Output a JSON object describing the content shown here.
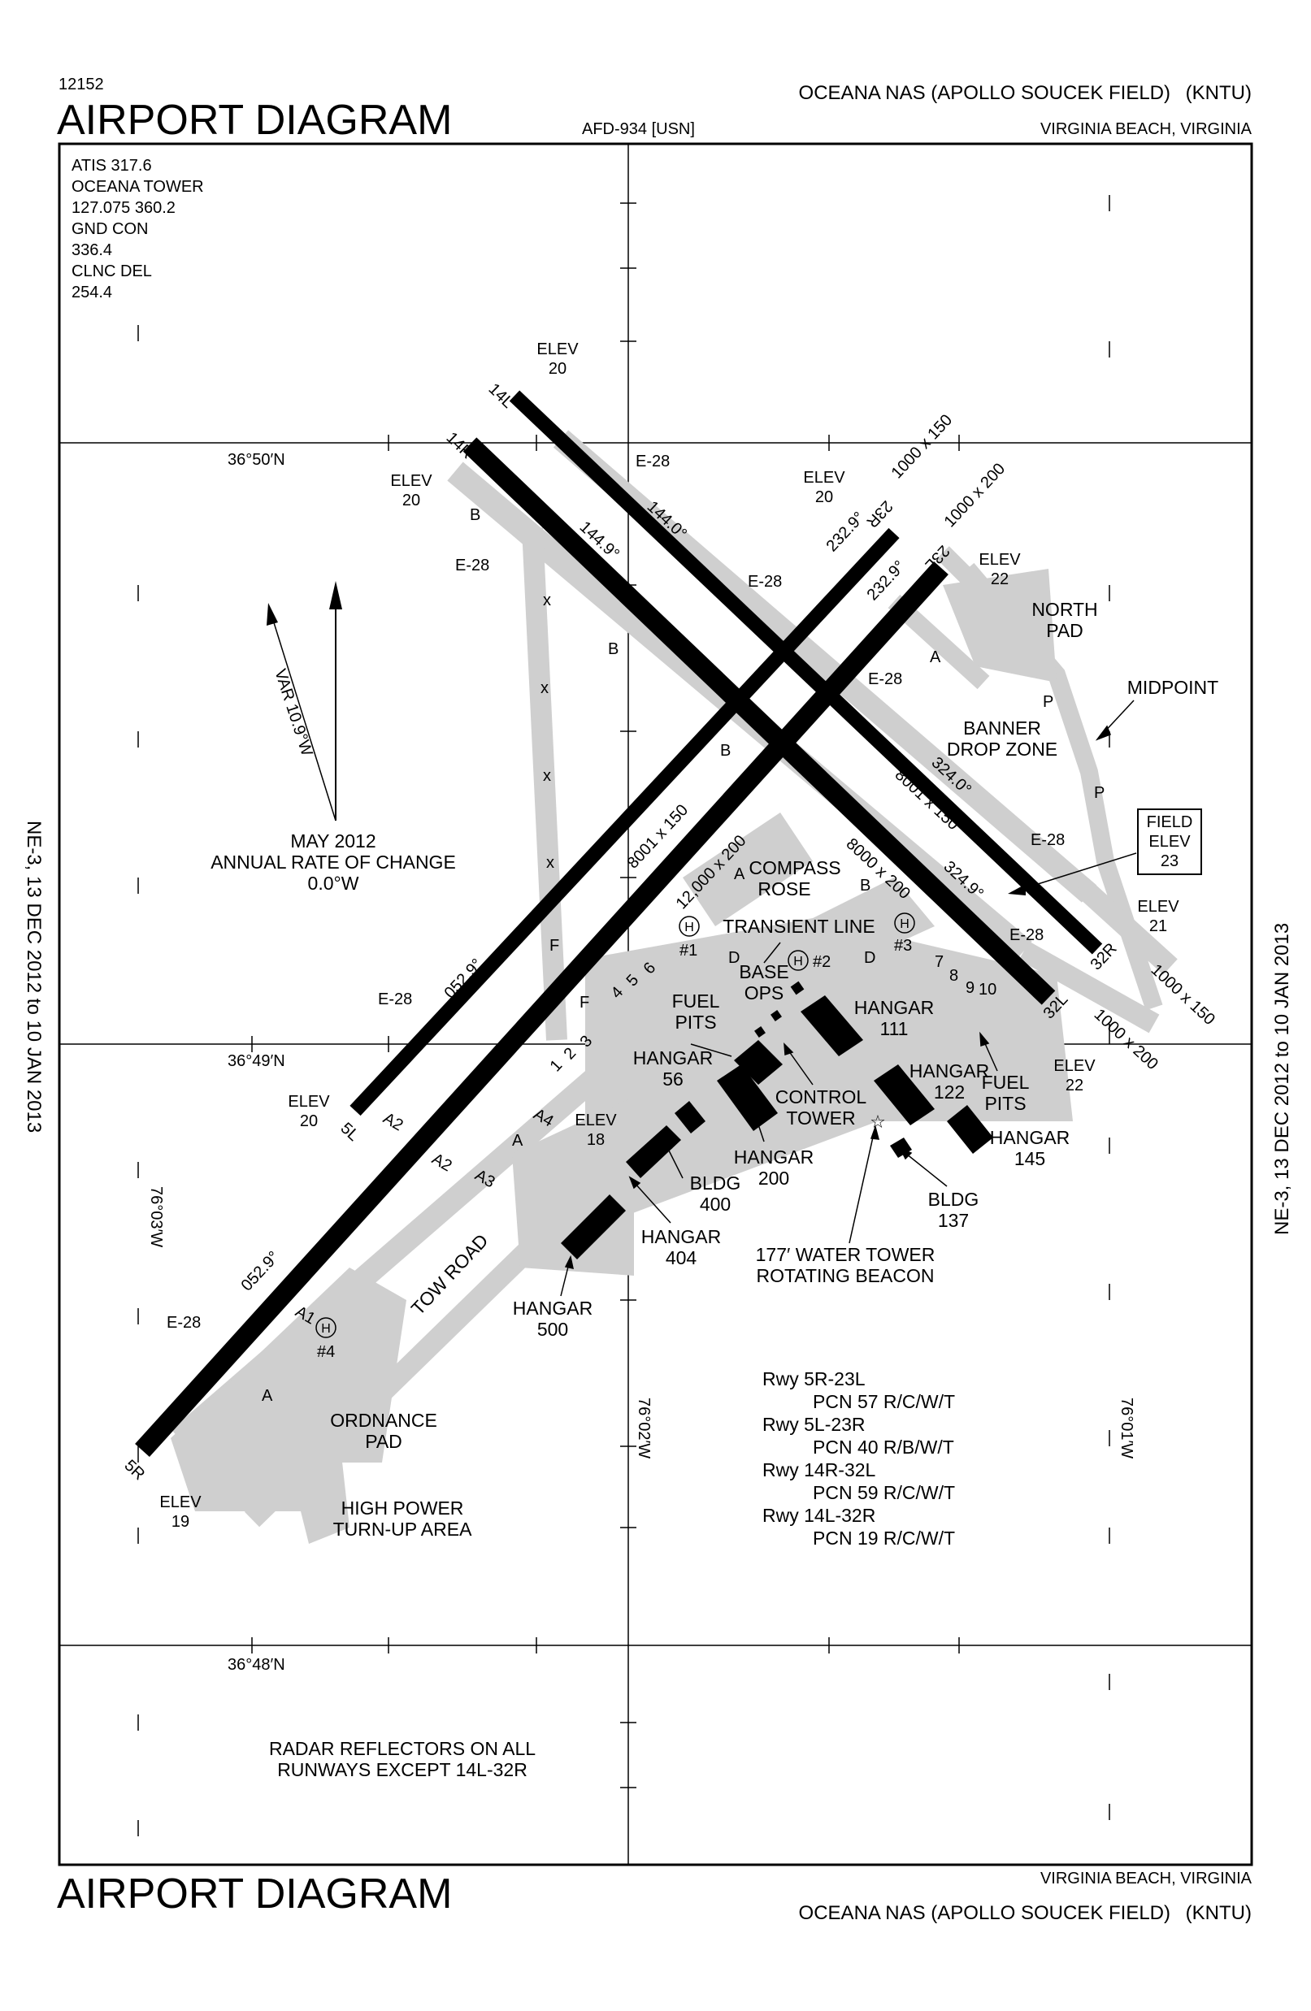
{
  "header": {
    "chart_number": "12152",
    "title": "AIRPORT DIAGRAM",
    "afd": "AFD-934 [USN]",
    "airport": "OCEANA NAS (APOLLO SOUCEK FIELD)",
    "ident": "(KNTU)",
    "location": "VIRGINIA BEACH, VIRGINIA"
  },
  "footer": {
    "title": "AIRPORT DIAGRAM",
    "location": "VIRGINIA BEACH, VIRGINIA",
    "airport": "OCEANA NAS (APOLLO SOUCEK FIELD)",
    "ident": "(KNTU)"
  },
  "side_label": "NE-3, 13 DEC 2012 to 10 JAN 2013",
  "comms": [
    "ATIS 317.6",
    "OCEANA TOWER",
    "127.075 360.2",
    "GND CON",
    "336.4",
    "CLNC DEL",
    "254.4"
  ],
  "coords": {
    "lat_50": "36°50′N",
    "lat_49": "36°49′N",
    "lat_48": "36°48′N",
    "lon_03": "76°03′W",
    "lon_02": "76°02′W",
    "lon_01": "76°01′W"
  },
  "magnetic": {
    "var": "VAR 10.9°W",
    "rate1": "MAY 2012",
    "rate2": "ANNUAL RATE OF CHANGE",
    "rate3": "0.0°W"
  },
  "runways": {
    "r14l": "14L",
    "r14r": "14R",
    "r32r": "32R",
    "r32l": "32L",
    "r5l": "5L",
    "r5r": "5R",
    "r23l": "23L",
    "r23r": "23R",
    "dim_14l": "1000 x 150",
    "dim_14r": "8000 x 200",
    "dim_32r": "1000 x 150",
    "dim_32l": "1000 x 200",
    "dim_5l": "8001 x 150",
    "dim_5r": "12,000 x 200",
    "dim_23r": "1000 x 150",
    "dim_23l": "1000 x 200",
    "dim_mid": "8001 x 150",
    "hdg_144_0": "144.0°",
    "hdg_144_9": "144.9°",
    "hdg_324_0": "324.0°",
    "hdg_324_9": "324.9°",
    "hdg_232_9a": "232.9°",
    "hdg_232_9b": "232.9°",
    "hdg_052_9a": "052.9°",
    "hdg_052_9b": "052.9°"
  },
  "elevations": {
    "e14l": [
      "ELEV",
      "20"
    ],
    "e14r": [
      "ELEV",
      "20"
    ],
    "e23r": [
      "ELEV",
      "20"
    ],
    "e23l": [
      "ELEV",
      "22"
    ],
    "e32r": [
      "ELEV",
      "21"
    ],
    "e32l": [
      "ELEV",
      "22"
    ],
    "e5l": [
      "ELEV",
      "20"
    ],
    "e5r": [
      "ELEV",
      "19"
    ],
    "eapron": [
      "ELEV",
      "18"
    ],
    "field": [
      "FIELD",
      "ELEV",
      "23"
    ]
  },
  "arresting_gear": "E-28",
  "taxiways": {
    "a": "A",
    "b": "B",
    "f": "F",
    "p": "P",
    "x": "x",
    "d": "D",
    "a1": "A1",
    "a2": "A2",
    "a3": "A3",
    "a4": "A4",
    "n1": "1",
    "n2": "2",
    "n3": "3",
    "n4": "4",
    "n5": "5",
    "n6": "6",
    "n7": "7",
    "n8": "8",
    "n9": "9",
    "n10": "10"
  },
  "helipads": {
    "h1": "#1",
    "h2": "#2",
    "h3": "#3",
    "h4": "#4"
  },
  "labels": {
    "north_pad": [
      "NORTH",
      "PAD"
    ],
    "midpoint": "MIDPOINT",
    "banner": [
      "BANNER",
      "DROP ZONE"
    ],
    "compass": [
      "COMPASS",
      "ROSE"
    ],
    "transient": "TRANSIENT LINE",
    "base_ops": [
      "BASE",
      "OPS"
    ],
    "fuel_pits_w": [
      "FUEL",
      "PITS"
    ],
    "fuel_pits_e": [
      "FUEL",
      "PITS"
    ],
    "hangar_111": [
      "HANGAR",
      "111"
    ],
    "hangar_56": [
      "HANGAR",
      "56"
    ],
    "hangar_122": [
      "HANGAR",
      "122"
    ],
    "hangar_145": [
      "HANGAR",
      "145"
    ],
    "hangar_200": [
      "HANGAR",
      "200"
    ],
    "hangar_404": [
      "HANGAR",
      "404"
    ],
    "hangar_500": [
      "HANGAR",
      "500"
    ],
    "bldg_400": [
      "BLDG",
      "400"
    ],
    "bldg_137": [
      "BLDG",
      "137"
    ],
    "control_tower": [
      "CONTROL",
      "TOWER"
    ],
    "water_tower": [
      "177′ WATER TOWER",
      "ROTATING BEACON"
    ],
    "tow_road": "TOW ROAD",
    "ordnance": [
      "ORDNANCE",
      "PAD"
    ],
    "high_power": [
      "HIGH POWER",
      "TURN-UP AREA"
    ],
    "radar": [
      "RADAR REFLECTORS ON ALL",
      "RUNWAYS EXCEPT 14L-32R"
    ]
  },
  "pcn": [
    {
      "rwy": "Rwy 5R-23L",
      "pcn": "PCN 57 R/C/W/T"
    },
    {
      "rwy": "Rwy 5L-23R",
      "pcn": "PCN 40 R/B/W/T"
    },
    {
      "rwy": "Rwy 14R-32L",
      "pcn": "PCN 59 R/C/W/T"
    },
    {
      "rwy": "Rwy 14L-32R",
      "pcn": "PCN 19 R/C/W/T"
    }
  ],
  "colors": {
    "runway": "#000000",
    "taxiway": "#cfcfcf",
    "border": "#000000"
  }
}
